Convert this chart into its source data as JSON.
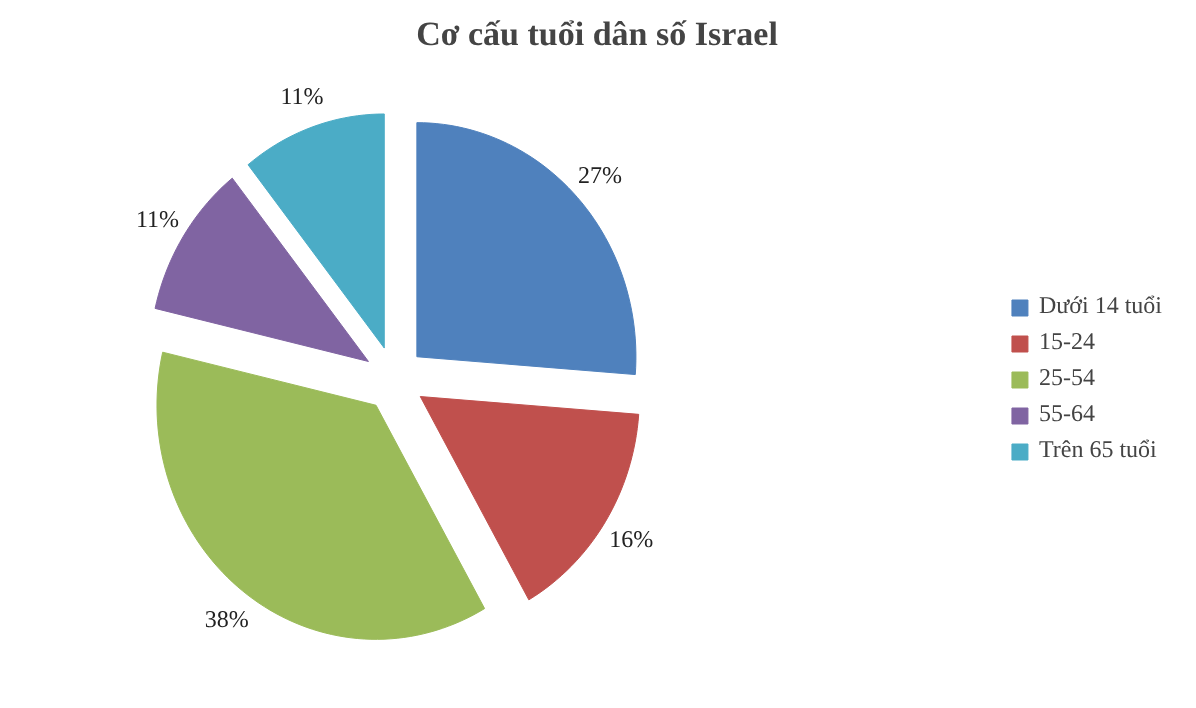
{
  "chart_data": {
    "type": "pie",
    "title": "Cơ cấu tuổi dân số Israel",
    "categories": [
      "Dưới 14 tuổi",
      "15-24",
      "25-54",
      "55-64",
      "Trên 65 tuổi"
    ],
    "values": [
      27,
      16,
      38,
      11,
      11
    ],
    "colors": [
      "#4f81bd",
      "#c0504d",
      "#9bbb59",
      "#8064a2",
      "#4bacc6"
    ],
    "value_labels": [
      "27%",
      "16%",
      "38%",
      "11%",
      "11%"
    ],
    "legend": "right"
  }
}
